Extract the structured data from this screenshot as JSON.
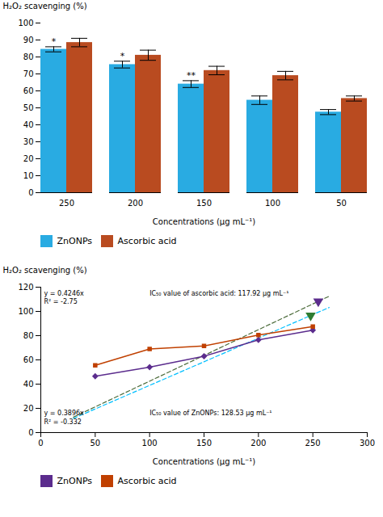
{
  "chart_data": [
    {
      "type": "bar",
      "categories": [
        "250",
        "200",
        "150",
        "100",
        "50"
      ],
      "series": [
        {
          "name": "ZnONPs",
          "color": "#29ABE2",
          "values": [
            84.5,
            75.5,
            64.0,
            54.5,
            47.5
          ],
          "errors": [
            1.5,
            2.0,
            2.0,
            2.5,
            1.5
          ]
        },
        {
          "name": "Ascorbic acid",
          "color": "#B94B20",
          "values": [
            88.5,
            81.0,
            72.0,
            69.0,
            55.5
          ],
          "errors": [
            2.5,
            3.0,
            2.5,
            2.5,
            1.5
          ]
        }
      ],
      "xlabel": "Concentrations (μg mL⁻¹)",
      "ylabel": "H₂O₂ scavenging (%)",
      "ylim": [
        0,
        100
      ],
      "yticks": [
        0,
        10,
        20,
        30,
        40,
        50,
        60,
        70,
        80,
        90,
        100
      ],
      "annotations": [
        {
          "category": "250",
          "series": "ZnONPs",
          "text": "*"
        },
        {
          "category": "200",
          "series": "ZnONPs",
          "text": "*"
        },
        {
          "category": "150",
          "series": "ZnONPs",
          "text": "**"
        }
      ],
      "legend": "bottom",
      "grid": false
    },
    {
      "type": "line",
      "x": [
        50,
        100,
        150,
        200,
        250
      ],
      "series": [
        {
          "name": "ZnONPs",
          "color": "#5B2C8D",
          "marker": "diamond",
          "values": [
            46.5,
            54.0,
            63.0,
            76.5,
            84.5
          ]
        },
        {
          "name": "Ascorbic acid",
          "color": "#C04000",
          "marker": "square",
          "values": [
            55.5,
            69.0,
            71.5,
            80.5,
            87.5
          ]
        }
      ],
      "trend_lines": [
        {
          "color": "#4B6B3A",
          "line_style": "dashed",
          "x": [
            30,
            265
          ],
          "values": [
            12.738,
            112.519
          ]
        },
        {
          "color": "#00BFFF",
          "line_style": "dashed",
          "x": [
            30,
            265
          ],
          "values": [
            11.688,
            103.244
          ]
        }
      ],
      "points": [
        {
          "x": 255,
          "y": 108.273,
          "color": "#5B2C8D",
          "marker": "triangle-down"
        },
        {
          "x": 248,
          "y": 96.6208,
          "color": "#2E7D32",
          "marker": "triangle-down"
        }
      ],
      "annotations": [
        {
          "x": 3,
          "y": 117,
          "text": "y = 0.4246x"
        },
        {
          "x": 3,
          "y": 110,
          "text": "R² = -2.75"
        },
        {
          "x": 100,
          "y": 117,
          "text": "IC₅₀ value of ascorbic acid: 117.92 μg mL⁻¹"
        },
        {
          "x": 3,
          "y": 18,
          "text": "y = 0.3896x"
        },
        {
          "x": 3,
          "y": 11,
          "text": "R² = -0.332"
        },
        {
          "x": 100,
          "y": 18,
          "text": "IC₅₀ value of ZnONPs: 128.53 μg mL⁻¹"
        }
      ],
      "xlabel": "Concentrations (μg mL⁻¹)",
      "ylabel": "H₂O₂ scavenging (%)",
      "xlim": [
        0,
        300
      ],
      "ylim": [
        0,
        120
      ],
      "xticks": [
        0,
        50,
        100,
        150,
        200,
        250,
        300
      ],
      "yticks": [
        0,
        20,
        40,
        60,
        80,
        100,
        120
      ],
      "legend": "bottom",
      "grid": false
    }
  ]
}
